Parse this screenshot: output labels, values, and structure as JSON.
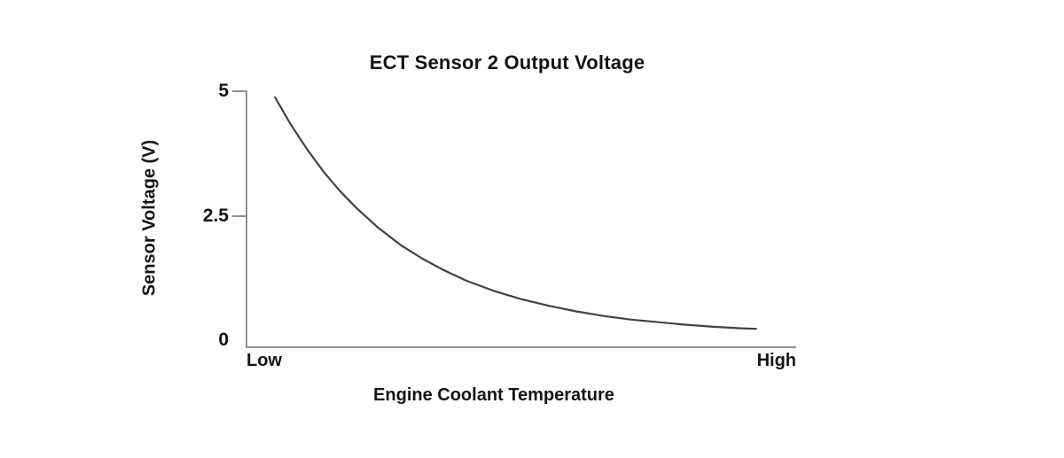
{
  "page": {
    "background": "#ffffff"
  },
  "chart_data": {
    "type": "line",
    "title": "ECT Sensor 2 Output Voltage",
    "xlabel": "Engine Coolant Temperature",
    "ylabel": "Sensor Voltage (V)",
    "ylim": [
      0,
      5
    ],
    "grid": false,
    "legend": "none",
    "x_axis": {
      "scale": "qualitative",
      "min_label": "Low",
      "max_label": "High"
    },
    "y_ticks": [
      {
        "value": 5,
        "label": "5"
      },
      {
        "value": 2.5,
        "label": "2.5"
      },
      {
        "value": 0,
        "label": "0"
      }
    ],
    "series": [
      {
        "name": "ECT Sensor 2 output voltage vs coolant temperature",
        "shape": "exponential-decay",
        "points": [
          [
            0.052,
            4.88
          ],
          [
            0.08,
            4.36
          ],
          [
            0.11,
            3.87
          ],
          [
            0.14,
            3.43
          ],
          [
            0.17,
            3.05
          ],
          [
            0.2,
            2.72
          ],
          [
            0.24,
            2.33
          ],
          [
            0.28,
            2.0
          ],
          [
            0.32,
            1.73
          ],
          [
            0.36,
            1.5
          ],
          [
            0.4,
            1.3
          ],
          [
            0.45,
            1.1
          ],
          [
            0.5,
            0.94
          ],
          [
            0.55,
            0.81
          ],
          [
            0.6,
            0.7
          ],
          [
            0.65,
            0.61
          ],
          [
            0.7,
            0.54
          ],
          [
            0.75,
            0.49
          ],
          [
            0.8,
            0.44
          ],
          [
            0.85,
            0.4
          ],
          [
            0.9,
            0.37
          ],
          [
            0.927,
            0.36
          ]
        ]
      }
    ],
    "colors": {
      "axis": "#8e8e8e",
      "curve": "#454040",
      "text": "#141414"
    }
  }
}
